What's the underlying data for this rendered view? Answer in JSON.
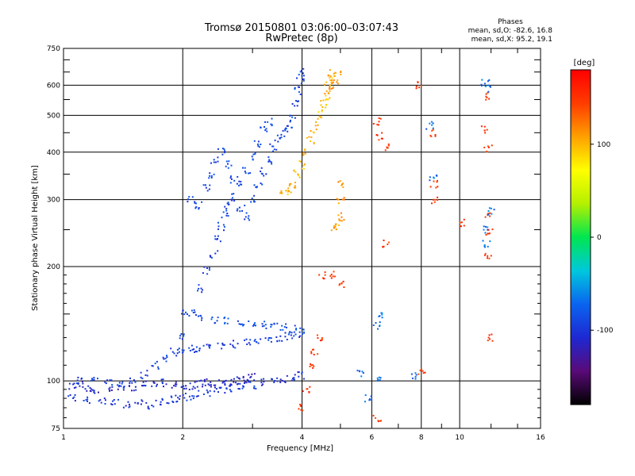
{
  "chart_data": {
    "type": "scatter",
    "title": "Tromsø 20150801 03:06:00–03:07:43",
    "subtitle": "RwPretec (8p)",
    "xlabel": "Frequency [MHz]",
    "ylabel": "Stationary phase Virtual Height [km]",
    "xscale": "log",
    "yscale": "log",
    "xlim": [
      1,
      16
    ],
    "ylim": [
      75,
      750
    ],
    "xticks": [
      1,
      2,
      4,
      6,
      8,
      10,
      16
    ],
    "xtick_labels": [
      "1",
      "2",
      "4",
      "6",
      "8",
      "10",
      "16"
    ],
    "yticks": [
      75,
      100,
      200,
      300,
      400,
      500,
      600,
      750
    ],
    "ytick_labels": [
      "75",
      "100",
      "200",
      "300",
      "400",
      "500",
      "600",
      "750"
    ],
    "grid": true,
    "phase_info": {
      "heading": "Phases",
      "line_o": "mean, sd,O: -82.6, 16.8",
      "line_x": "mean, sd,X:  95.2, 19.1"
    },
    "colorbar": {
      "label": "[deg]",
      "range": [
        -180,
        180
      ],
      "ticks": [
        100,
        0,
        -100
      ],
      "tick_labels": [
        "100",
        "0",
        "-100"
      ],
      "colors": [
        "#000000",
        "#5a0a78",
        "#1e28d2",
        "#0a64f0",
        "#00c8dc",
        "#00e650",
        "#b4f000",
        "#ffff00",
        "#ffa000",
        "#ff3c00",
        "#ff0000"
      ]
    },
    "traces": [
      {
        "name": "",
        "phase": -110,
        "points": [
          [
            1.05,
            97
          ],
          [
            1.1,
            98
          ],
          [
            1.15,
            95
          ],
          [
            1.2,
            93
          ],
          [
            1.3,
            95
          ],
          [
            1.4,
            97
          ],
          [
            1.5,
            96
          ],
          [
            1.6,
            98
          ],
          [
            1.7,
            97
          ],
          [
            1.8,
            99
          ],
          [
            1.9,
            97
          ],
          [
            2.0,
            96
          ],
          [
            2.1,
            97
          ],
          [
            2.2,
            98
          ],
          [
            2.3,
            99
          ],
          [
            2.4,
            98
          ],
          [
            2.5,
            99
          ],
          [
            2.6,
            98
          ],
          [
            2.7,
            99
          ],
          [
            2.8,
            100
          ],
          [
            2.9,
            101
          ],
          [
            3.0,
            102
          ]
        ]
      },
      {
        "name": "",
        "phase": -100,
        "points": [
          [
            1.05,
            90
          ],
          [
            1.15,
            89
          ],
          [
            1.25,
            89
          ],
          [
            1.35,
            88
          ],
          [
            1.45,
            87
          ],
          [
            1.55,
            87
          ],
          [
            1.65,
            86
          ],
          [
            1.75,
            88
          ],
          [
            1.85,
            89
          ],
          [
            1.95,
            90
          ],
          [
            2.05,
            91
          ],
          [
            2.15,
            92
          ],
          [
            2.3,
            93
          ],
          [
            2.45,
            94
          ],
          [
            2.6,
            95
          ],
          [
            2.8,
            96
          ],
          [
            3.0,
            97
          ],
          [
            3.2,
            99
          ],
          [
            3.4,
            100
          ],
          [
            3.6,
            101
          ],
          [
            3.8,
            102
          ],
          [
            4.0,
            103
          ]
        ]
      },
      {
        "name": "",
        "phase": -95,
        "points": [
          [
            1.1,
            100
          ],
          [
            1.2,
            101
          ],
          [
            1.3,
            99
          ],
          [
            1.4,
            98
          ],
          [
            1.5,
            100
          ],
          [
            1.6,
            104
          ],
          [
            1.7,
            110
          ],
          [
            1.8,
            115
          ],
          [
            1.9,
            119
          ],
          [
            2.0,
            120
          ],
          [
            2.1,
            121
          ],
          [
            2.2,
            122
          ],
          [
            2.3,
            123
          ],
          [
            2.5,
            124
          ],
          [
            2.7,
            125
          ],
          [
            2.9,
            127
          ],
          [
            3.1,
            128
          ],
          [
            3.3,
            129
          ],
          [
            3.5,
            130
          ],
          [
            3.7,
            131
          ],
          [
            3.9,
            132
          ]
        ]
      },
      {
        "name": "",
        "phase": -92,
        "points": [
          [
            2.0,
            130
          ],
          [
            2.1,
            150
          ],
          [
            2.2,
            175
          ],
          [
            2.3,
            195
          ],
          [
            2.4,
            215
          ],
          [
            2.45,
            235
          ],
          [
            2.5,
            255
          ],
          [
            2.55,
            275
          ],
          [
            2.6,
            290
          ],
          [
            2.7,
            305
          ],
          [
            2.8,
            285
          ],
          [
            2.9,
            270
          ],
          [
            3.0,
            300
          ],
          [
            3.1,
            330
          ],
          [
            3.2,
            355
          ],
          [
            3.3,
            380
          ],
          [
            3.4,
            410
          ],
          [
            3.5,
            435
          ],
          [
            3.6,
            450
          ],
          [
            3.7,
            460
          ],
          [
            3.8,
            490
          ],
          [
            3.85,
            540
          ],
          [
            3.9,
            580
          ],
          [
            3.95,
            620
          ],
          [
            4.0,
            650
          ]
        ]
      },
      {
        "name": "",
        "phase": -88,
        "points": [
          [
            2.1,
            300
          ],
          [
            2.2,
            290
          ],
          [
            2.3,
            320
          ],
          [
            2.35,
            350
          ],
          [
            2.4,
            380
          ],
          [
            2.5,
            400
          ],
          [
            2.6,
            370
          ],
          [
            2.7,
            340
          ],
          [
            2.8,
            330
          ],
          [
            2.9,
            360
          ],
          [
            3.0,
            390
          ],
          [
            3.1,
            420
          ],
          [
            3.2,
            460
          ],
          [
            3.3,
            480
          ]
        ]
      },
      {
        "name": "",
        "phase": -85,
        "points": [
          [
            2.0,
            150
          ],
          [
            2.2,
            148
          ],
          [
            2.4,
            145
          ],
          [
            2.6,
            144
          ],
          [
            2.8,
            142
          ],
          [
            3.0,
            141
          ],
          [
            3.2,
            140
          ],
          [
            3.4,
            139
          ],
          [
            3.6,
            138
          ],
          [
            3.8,
            137
          ],
          [
            4.0,
            136
          ]
        ]
      },
      {
        "name": "",
        "phase": 100,
        "points": [
          [
            3.6,
            310
          ],
          [
            3.7,
            320
          ],
          [
            3.8,
            330
          ],
          [
            3.9,
            350
          ],
          [
            4.0,
            370
          ],
          [
            4.1,
            400
          ],
          [
            4.2,
            430
          ],
          [
            4.3,
            460
          ],
          [
            4.4,
            490
          ],
          [
            4.5,
            520
          ],
          [
            4.55,
            540
          ],
          [
            4.6,
            560
          ],
          [
            4.65,
            590
          ],
          [
            4.7,
            620
          ],
          [
            4.75,
            650
          ]
        ]
      },
      {
        "name": "",
        "phase": 110,
        "points": [
          [
            4.8,
            600
          ],
          [
            4.85,
            620
          ],
          [
            4.9,
            640
          ],
          [
            5.0,
            330
          ],
          [
            5.0,
            300
          ],
          [
            5.0,
            270
          ],
          [
            4.8,
            255
          ],
          [
            4.9,
            260
          ]
        ]
      },
      {
        "name": "",
        "phase": 150,
        "points": [
          [
            4.0,
            85
          ],
          [
            4.1,
            95
          ],
          [
            4.2,
            110
          ],
          [
            4.3,
            120
          ],
          [
            4.4,
            130
          ],
          [
            4.5,
            190
          ],
          [
            4.8,
            190
          ],
          [
            5.0,
            180
          ],
          [
            6.2,
            480
          ],
          [
            6.3,
            440
          ],
          [
            6.6,
            410
          ],
          [
            6.5,
            230
          ],
          [
            6.2,
            80
          ],
          [
            8.5,
            450
          ],
          [
            8.6,
            330
          ],
          [
            8.6,
            300
          ],
          [
            10.2,
            260
          ],
          [
            11.5,
            460
          ],
          [
            11.7,
            560
          ],
          [
            11.8,
            410
          ],
          [
            11.8,
            270
          ],
          [
            11.9,
            245
          ],
          [
            11.8,
            215
          ],
          [
            11.9,
            130
          ],
          [
            7.9,
            600
          ],
          [
            8.0,
            105
          ]
        ]
      },
      {
        "name": "",
        "phase": -70,
        "points": [
          [
            6.2,
            140
          ],
          [
            6.3,
            150
          ],
          [
            5.6,
            105
          ],
          [
            5.9,
            90
          ],
          [
            8.4,
            470
          ],
          [
            8.6,
            340
          ],
          [
            11.6,
            610
          ],
          [
            11.8,
            590
          ],
          [
            11.6,
            250
          ],
          [
            11.7,
            230
          ],
          [
            12.0,
            280
          ],
          [
            7.7,
            103
          ],
          [
            6.3,
            100
          ]
        ]
      }
    ]
  }
}
